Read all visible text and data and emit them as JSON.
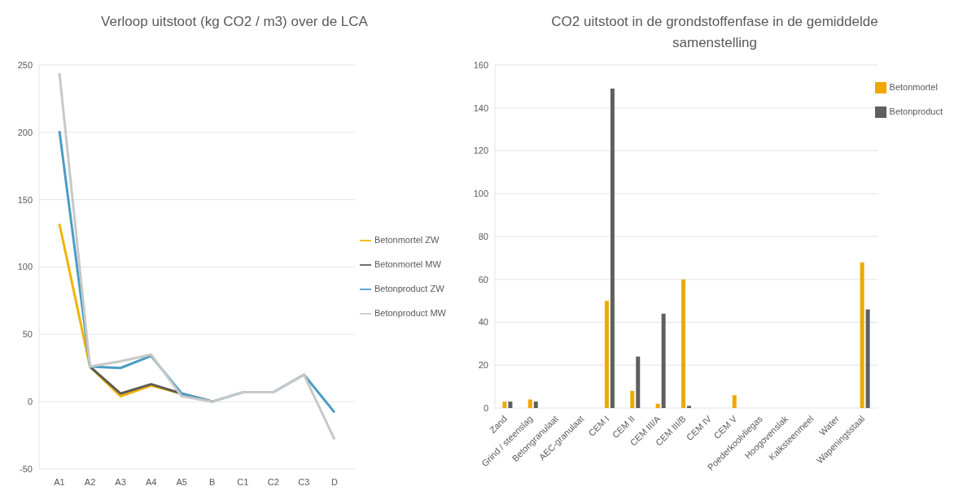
{
  "chart_data": [
    {
      "type": "line",
      "title": "Verloop uitstoot (kg CO2 / m3) over de LCA",
      "categories": [
        "A1",
        "A2",
        "A3",
        "A4",
        "A5",
        "B",
        "C1",
        "C2",
        "C3",
        "D"
      ],
      "series": [
        {
          "name": "Betonmortel ZW",
          "color": "#f0b400",
          "values": [
            132,
            26,
            4,
            12,
            6,
            0,
            null,
            null,
            null,
            null
          ]
        },
        {
          "name": "Betonmortel MW",
          "color": "#5f5a55",
          "values": [
            null,
            26,
            6,
            13,
            6,
            0,
            null,
            null,
            null,
            null
          ]
        },
        {
          "name": "Betonproduct ZW",
          "color": "#4a9cc4",
          "values": [
            201,
            26,
            25,
            34,
            6,
            0,
            7,
            7,
            20,
            -8
          ]
        },
        {
          "name": "Betonproduct MW",
          "color": "#c8c8c8",
          "values": [
            244,
            26,
            30,
            35,
            4,
            0,
            7,
            7,
            20,
            -28
          ]
        }
      ],
      "ylim": [
        -50,
        250
      ],
      "yticks": [
        -50,
        0,
        50,
        100,
        150,
        200,
        250
      ],
      "grid": "y",
      "legend": "right",
      "marker": "none"
    },
    {
      "type": "bar",
      "title": "CO2 uitstoot in de grondstoffenfase in de gemiddelde samenstelling",
      "categories": [
        "Zand",
        "Grind / steenslag",
        "Betongranulaat",
        "AEC-granulaat",
        "CEM I",
        "CEM II",
        "CEM III/A",
        "CEM III/B",
        "CEM IV",
        "CEM V",
        "Poederkoolvliegas",
        "Hoogovenslak",
        "Kalksteenmeel",
        "Water",
        "Wapeningsstaal"
      ],
      "series": [
        {
          "name": "Betonmortel",
          "color": "#f0a800",
          "values": [
            3,
            4,
            null,
            null,
            50,
            8,
            2,
            60,
            null,
            6,
            null,
            null,
            null,
            null,
            68
          ]
        },
        {
          "name": "Betonproduct",
          "color": "#5f5f5f",
          "values": [
            3,
            3,
            null,
            null,
            149,
            24,
            44,
            1,
            null,
            null,
            null,
            null,
            null,
            null,
            46
          ]
        }
      ],
      "ylim": [
        0,
        160
      ],
      "yticks": [
        0,
        20,
        40,
        60,
        80,
        100,
        120,
        140,
        160
      ],
      "grid": "y",
      "legend": "top right"
    }
  ]
}
